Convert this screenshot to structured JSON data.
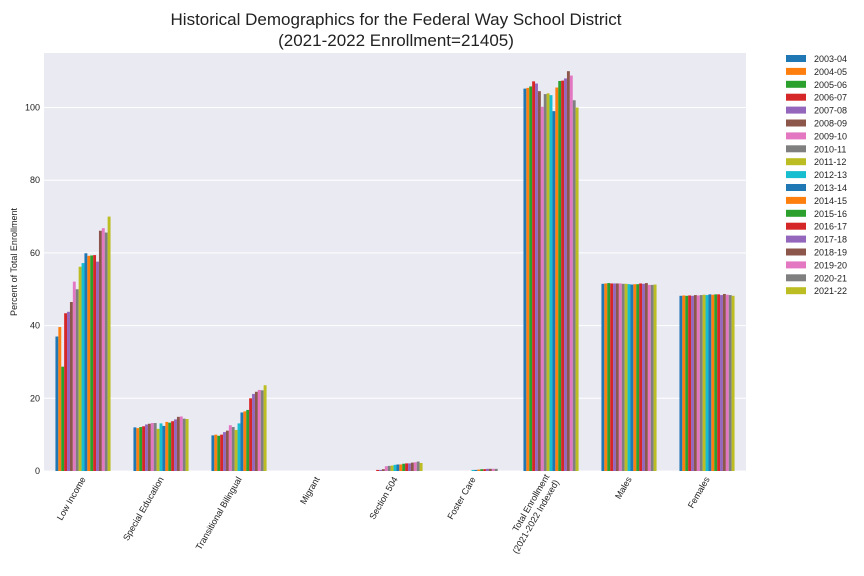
{
  "chart_data": {
    "type": "bar",
    "title": "Historical Demographics for the Federal Way School District",
    "subtitle": "(2021-2022 Enrollment=21405)",
    "xlabel": "",
    "ylabel": "Percent of Total Enrollment",
    "ylim": [
      0,
      115
    ],
    "yticks": [
      0,
      20,
      40,
      60,
      80,
      100
    ],
    "grid": true,
    "legend_position": "right",
    "categories": [
      "Low Income",
      "Special Education",
      "Transitional Bilingual",
      "Migrant",
      "Section 504",
      "Foster Care",
      "Total Enrollment\n(2021-2022 Indexed)",
      "Males",
      "Females"
    ],
    "series": [
      {
        "name": "2003-04",
        "color": "#1f77b4",
        "values": [
          37.0,
          12.0,
          9.8,
          0.0,
          0.0,
          0.0,
          105.2,
          51.5,
          48.2
        ]
      },
      {
        "name": "2004-05",
        "color": "#ff7f0e",
        "values": [
          39.6,
          11.8,
          10.0,
          0.0,
          0.0,
          0.0,
          105.4,
          51.6,
          48.3
        ]
      },
      {
        "name": "2005-06",
        "color": "#2ca02c",
        "values": [
          28.7,
          12.1,
          9.7,
          0.0,
          0.0,
          0.0,
          105.8,
          51.7,
          48.2
        ]
      },
      {
        "name": "2006-07",
        "color": "#d62728",
        "values": [
          43.4,
          12.3,
          10.0,
          0.0,
          0.3,
          0.0,
          107.2,
          51.6,
          48.3
        ]
      },
      {
        "name": "2007-08",
        "color": "#9467bd",
        "values": [
          43.8,
          12.8,
          10.7,
          0.0,
          0.3,
          0.0,
          106.6,
          51.6,
          48.2
        ]
      },
      {
        "name": "2008-09",
        "color": "#8c564b",
        "values": [
          46.5,
          13.0,
          11.1,
          0.0,
          0.5,
          0.0,
          104.5,
          51.6,
          48.4
        ]
      },
      {
        "name": "2009-10",
        "color": "#e377c2",
        "values": [
          52.1,
          13.2,
          12.6,
          0.0,
          1.3,
          0.0,
          100.2,
          51.6,
          48.3
        ]
      },
      {
        "name": "2010-11",
        "color": "#7f7f7f",
        "values": [
          50.0,
          13.2,
          12.1,
          0.0,
          1.4,
          0.0,
          103.7,
          51.5,
          48.4
        ]
      },
      {
        "name": "2011-12",
        "color": "#bcbd22",
        "values": [
          56.2,
          11.6,
          11.3,
          0.0,
          1.5,
          0.0,
          103.9,
          51.5,
          48.5
        ]
      },
      {
        "name": "2012-13",
        "color": "#17becf",
        "values": [
          57.2,
          13.1,
          13.1,
          0.0,
          1.7,
          0.3,
          103.4,
          51.4,
          48.4
        ]
      },
      {
        "name": "2013-14",
        "color": "#1f77b4",
        "values": [
          59.9,
          12.4,
          16.1,
          0.0,
          1.8,
          0.3,
          99.0,
          51.3,
          48.6
        ]
      },
      {
        "name": "2014-15",
        "color": "#ff7f0e",
        "values": [
          59.2,
          13.5,
          16.4,
          0.0,
          1.8,
          0.4,
          105.5,
          51.4,
          48.5
        ]
      },
      {
        "name": "2015-16",
        "color": "#2ca02c",
        "values": [
          59.3,
          13.3,
          16.8,
          0.0,
          2.0,
          0.5,
          107.3,
          51.4,
          48.6
        ]
      },
      {
        "name": "2016-17",
        "color": "#d62728",
        "values": [
          59.4,
          13.7,
          20.0,
          0.0,
          2.1,
          0.5,
          107.4,
          51.6,
          48.6
        ]
      },
      {
        "name": "2017-18",
        "color": "#9467bd",
        "values": [
          57.6,
          14.2,
          21.2,
          0.0,
          2.1,
          0.6,
          108.0,
          51.5,
          48.4
        ]
      },
      {
        "name": "2018-19",
        "color": "#8c564b",
        "values": [
          66.1,
          14.9,
          21.8,
          0.0,
          2.3,
          0.6,
          110.0,
          51.7,
          48.7
        ]
      },
      {
        "name": "2019-20",
        "color": "#e377c2",
        "values": [
          66.8,
          15.0,
          22.3,
          0.0,
          2.4,
          0.6,
          108.8,
          51.2,
          48.5
        ]
      },
      {
        "name": "2020-21",
        "color": "#7f7f7f",
        "values": [
          65.6,
          14.4,
          22.2,
          0.0,
          2.6,
          0.6,
          102.0,
          51.2,
          48.4
        ]
      },
      {
        "name": "2021-22",
        "color": "#bcbd22",
        "values": [
          70.0,
          14.3,
          23.6,
          0.0,
          2.2,
          0.0,
          100.0,
          51.3,
          48.2
        ]
      }
    ]
  }
}
